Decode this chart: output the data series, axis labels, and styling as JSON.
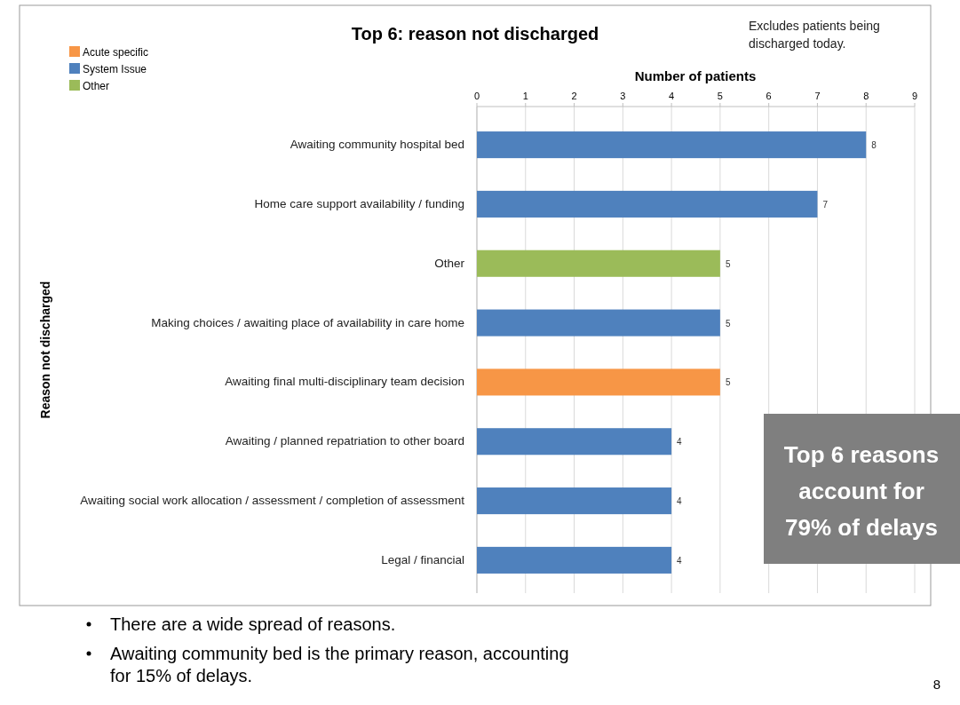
{
  "chart_data": {
    "type": "bar",
    "orientation": "horizontal",
    "stacked": true,
    "title": "Top 6: reason not discharged",
    "xlabel": "Number of patients",
    "ylabel": "Reason not discharged",
    "categories": [
      "Awaiting community hospital bed",
      "Home care support availability / funding",
      "Other",
      "Making choices / awaiting place of availability in care home",
      "Awaiting final multi-disciplinary team decision",
      "Awaiting / planned repatriation to other board",
      "Awaiting social work allocation / assessment / completion of assessment",
      "Legal / financial"
    ],
    "series": [
      {
        "name": "Acute specific",
        "color": "#f79646",
        "values": [
          null,
          null,
          null,
          null,
          5,
          null,
          null,
          null
        ]
      },
      {
        "name": "System Issue",
        "color": "#4f81bd",
        "values": [
          8,
          7,
          null,
          5,
          null,
          4,
          4,
          4
        ]
      },
      {
        "name": "Other",
        "color": "#9bbb59",
        "values": [
          null,
          null,
          5,
          null,
          null,
          null,
          null,
          null
        ]
      }
    ],
    "xlim": [
      0,
      9
    ],
    "xticks": [
      0,
      1,
      2,
      3,
      4,
      5,
      6,
      7,
      8,
      9
    ],
    "grid": "x",
    "legend": "top left",
    "data_labels": true,
    "annotations": [
      "Excludes patients being discharged today.",
      "Top 6 reasons account for 79% of delays",
      "There are a wide spread of reasons.",
      "Awaiting community bed is the primary reason, accounting for 15% of delays.",
      "8"
    ]
  }
}
